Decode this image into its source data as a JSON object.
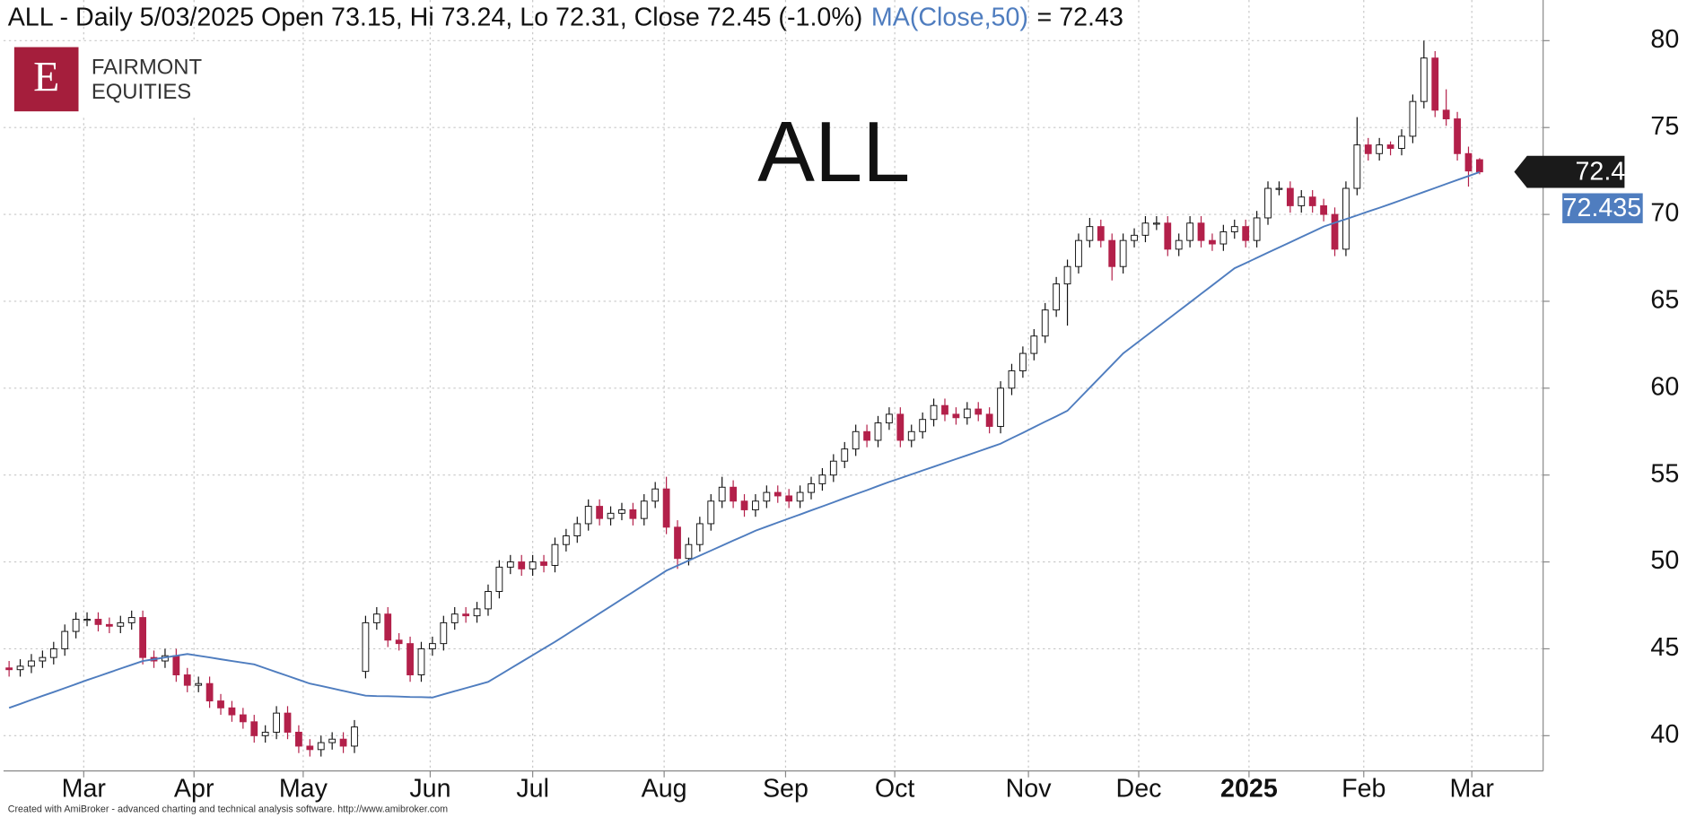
{
  "chart_data": {
    "type": "candlestick",
    "header": "ALL - Daily 5/03/2025 Open 73.15, Hi 73.24, Lo 72.31, Close 72.45 (-1.0%)",
    "header_suffix": "= 72.43",
    "watermark": "ALL",
    "logo": {
      "mark": "E",
      "line1": "FAIRMONT",
      "line2": "EQUITIES"
    },
    "footer": "Created with AmiBroker - advanced charting and technical analysis software. http://www.amibroker.com",
    "xlim": [
      -0.5,
      137.7
    ],
    "xticks": [
      {
        "value": 6.7,
        "label": "Mar"
      },
      {
        "value": 16.6,
        "label": "Apr"
      },
      {
        "value": 26.4,
        "label": "May"
      },
      {
        "value": 37.8,
        "label": "Jun"
      },
      {
        "value": 47,
        "label": "Jul"
      },
      {
        "value": 58.8,
        "label": "Aug"
      },
      {
        "value": 69.7,
        "label": "Sep"
      },
      {
        "value": 79.5,
        "label": "Oct"
      },
      {
        "value": 91.5,
        "label": "Nov"
      },
      {
        "value": 101.4,
        "label": "Dec"
      },
      {
        "value": 111.3,
        "label": "2025"
      },
      {
        "value": 121.6,
        "label": "Feb"
      },
      {
        "value": 131.3,
        "label": "Mar"
      }
    ],
    "ylim": [
      37.97,
      82.34
    ],
    "yticks": [
      40,
      45,
      50,
      55,
      60,
      65,
      70,
      75,
      80
    ],
    "grid": true,
    "series": [
      {
        "name": "ALL",
        "up_color": "#ffffff",
        "down_color": "#b3204a",
        "outline": "#111111",
        "open": [
          43.9,
          43.8,
          44,
          44.3,
          44.5,
          45,
          46,
          46.7,
          46.7,
          46.4,
          46.3,
          46.5,
          46.8,
          44.5,
          44.3,
          44.6,
          43.5,
          42.9,
          43,
          42,
          41.6,
          41.2,
          40.8,
          40,
          40.2,
          41.3,
          40.2,
          39.4,
          39.2,
          39.6,
          39.8,
          39.4,
          43.7,
          46.5,
          47,
          45.5,
          45.3,
          43.5,
          45,
          45.3,
          46.5,
          47,
          46.9,
          47.3,
          48.3,
          49.7,
          50,
          49.6,
          50,
          49.8,
          51,
          51.5,
          52.2,
          53.2,
          52.5,
          52.8,
          53,
          52.5,
          53.5,
          54.2,
          52,
          50.2,
          51,
          52.2,
          53.5,
          54.3,
          53.5,
          53,
          53.5,
          54,
          53.8,
          53.5,
          54,
          54.5,
          55,
          55.8,
          56.5,
          57.5,
          57,
          58,
          58.5,
          57,
          57.5,
          58.2,
          59,
          58.5,
          58.3,
          58.8,
          58.5,
          57.8,
          60,
          61,
          62,
          63,
          64.5,
          66,
          67,
          68.5,
          69.3,
          68.5,
          67,
          68.5,
          68.8,
          69.5,
          69.5,
          68,
          68.5,
          69.5,
          68.5,
          68.3,
          69,
          69.3,
          68.5,
          69.8,
          71.5,
          71.5,
          70.5,
          71,
          70.5,
          70,
          68,
          71.5,
          74,
          73.5,
          74,
          73.8,
          74.5,
          76.5,
          79,
          76,
          75.5,
          73.5,
          73.15
        ],
        "high": [
          44.3,
          44.4,
          44.7,
          44.9,
          45.4,
          46.4,
          47.1,
          47.1,
          47.1,
          46.8,
          46.9,
          47.2,
          47.2,
          44.9,
          45,
          45,
          43.9,
          43.4,
          43.4,
          42.4,
          42,
          41.6,
          41.2,
          40.6,
          41.7,
          41.7,
          40.6,
          39.8,
          40,
          40.2,
          40.2,
          40.9,
          46.9,
          47.4,
          47.4,
          45.9,
          45.7,
          45.4,
          45.7,
          46.9,
          47.4,
          47.4,
          47.7,
          48.7,
          50.1,
          50.4,
          50.4,
          50.4,
          50.4,
          51.4,
          51.9,
          52.6,
          53.6,
          53.6,
          53.2,
          53.4,
          53.4,
          53.9,
          54.6,
          54.9,
          52.4,
          51.4,
          52.6,
          53.9,
          54.9,
          54.7,
          53.9,
          53.9,
          54.4,
          54.4,
          54.2,
          54.4,
          54.9,
          55.4,
          56.2,
          56.9,
          57.9,
          57.9,
          58.4,
          58.9,
          58.9,
          57.9,
          58.6,
          59.4,
          59.4,
          58.9,
          59.2,
          59.2,
          58.9,
          60.4,
          61.4,
          62.4,
          63.4,
          64.9,
          66.4,
          67.4,
          68.9,
          69.8,
          69.7,
          68.9,
          68.9,
          69.2,
          69.9,
          69.9,
          69.9,
          68.9,
          69.9,
          69.9,
          68.9,
          69.4,
          69.7,
          69.7,
          70.2,
          71.9,
          71.9,
          71.9,
          71.4,
          71.4,
          70.9,
          70.4,
          71.9,
          75.6,
          74.4,
          74.4,
          74.2,
          74.9,
          76.9,
          80,
          79.4,
          77.2,
          75.9,
          73.9,
          73.24
        ],
        "low": [
          43.4,
          43.4,
          43.6,
          43.9,
          44.1,
          44.6,
          45.6,
          46.3,
          46,
          45.9,
          45.9,
          46.1,
          44.1,
          43.9,
          43.9,
          43.1,
          42.5,
          42.5,
          41.6,
          41.2,
          40.8,
          40.4,
          39.6,
          39.6,
          39.8,
          39.8,
          39,
          38.8,
          38.8,
          39.2,
          39,
          39,
          43.3,
          46.1,
          45.1,
          44.9,
          43.1,
          43.1,
          44.6,
          44.9,
          46.1,
          46.5,
          46.5,
          46.9,
          47.9,
          49.3,
          49.2,
          49.2,
          49.4,
          49.4,
          50.6,
          51.1,
          51.8,
          52.1,
          52.1,
          52.4,
          52.1,
          52.1,
          53.1,
          51.6,
          49.6,
          49.8,
          50.6,
          51.8,
          53.1,
          53.1,
          52.6,
          52.6,
          53.1,
          53.4,
          53.1,
          53.1,
          53.6,
          54.1,
          54.6,
          55.4,
          56.1,
          56.6,
          56.6,
          57.6,
          56.6,
          56.6,
          57.1,
          57.8,
          58.1,
          57.9,
          57.9,
          58.1,
          57.4,
          57.4,
          59.6,
          60.6,
          61.6,
          62.6,
          64.1,
          63.6,
          66.6,
          68.1,
          68.1,
          66.2,
          66.6,
          68.1,
          68.4,
          69.1,
          67.6,
          67.6,
          68.1,
          68.1,
          67.9,
          67.9,
          68.6,
          68.1,
          68.1,
          69.4,
          71.1,
          70.1,
          70.1,
          70.1,
          69.6,
          67.6,
          67.6,
          71.1,
          73.1,
          73.1,
          73.4,
          73.4,
          74.1,
          76.1,
          75.6,
          75.1,
          73.1,
          71.6,
          72.31
        ],
        "close": [
          43.8,
          44,
          44.3,
          44.5,
          45,
          46,
          46.7,
          46.7,
          46.4,
          46.3,
          46.5,
          46.8,
          44.5,
          44.3,
          44.6,
          43.5,
          42.9,
          43,
          42,
          41.6,
          41.2,
          40.8,
          40,
          40.2,
          41.3,
          40.2,
          39.4,
          39.2,
          39.6,
          39.8,
          39.4,
          40.5,
          46.5,
          47,
          45.5,
          45.3,
          43.5,
          45,
          45.3,
          46.5,
          47,
          46.9,
          47.3,
          48.3,
          49.7,
          50,
          49.6,
          50,
          49.8,
          51,
          51.5,
          52.2,
          53.2,
          52.5,
          52.8,
          53,
          52.5,
          53.5,
          54.2,
          52,
          50.2,
          51,
          52.2,
          53.5,
          54.3,
          53.5,
          53,
          53.5,
          54,
          53.8,
          53.5,
          54,
          54.5,
          55,
          55.8,
          56.5,
          57.5,
          57,
          58,
          58.5,
          57,
          57.5,
          58.2,
          59,
          58.5,
          58.3,
          58.8,
          58.5,
          57.8,
          60,
          61,
          62,
          63,
          64.5,
          66,
          67,
          68.5,
          69.3,
          68.5,
          67,
          68.5,
          68.8,
          69.5,
          69.5,
          68,
          68.5,
          69.5,
          68.5,
          68.3,
          69,
          69.3,
          68.5,
          69.8,
          71.5,
          71.5,
          70.5,
          71,
          70.5,
          70,
          68,
          71.5,
          74,
          73.5,
          74,
          73.8,
          74.5,
          76.5,
          79,
          76,
          75.5,
          73.5,
          72.5,
          72.45
        ]
      }
    ],
    "ma": {
      "name": "MA(Close,50)",
      "color": "#4f7dbf",
      "values": [
        41.6,
        41.83,
        42.06,
        42.29,
        42.51,
        42.74,
        42.97,
        43.2,
        43.42,
        43.64,
        43.86,
        44.08,
        44.3,
        44.4,
        44.5,
        44.6,
        44.7,
        44.6,
        44.5,
        44.4,
        44.3,
        44.2,
        44.1,
        43.88,
        43.66,
        43.44,
        43.22,
        43.0,
        42.86,
        42.72,
        42.58,
        42.44,
        42.3,
        42.28,
        42.27,
        42.25,
        42.23,
        42.22,
        42.2,
        42.38,
        42.56,
        42.74,
        42.92,
        43.1,
        43.48,
        43.87,
        44.25,
        44.63,
        45.02,
        45.4,
        45.81,
        46.22,
        46.63,
        47.04,
        47.45,
        47.86,
        48.27,
        48.68,
        49.09,
        49.5,
        49.79,
        50.08,
        50.36,
        50.65,
        50.94,
        51.23,
        51.51,
        51.8,
        52.03,
        52.27,
        52.5,
        52.73,
        52.97,
        53.2,
        53.43,
        53.67,
        53.9,
        54.13,
        54.37,
        54.6,
        54.82,
        55.04,
        55.26,
        55.48,
        55.7,
        55.92,
        56.14,
        56.36,
        56.58,
        56.8,
        57.12,
        57.43,
        57.75,
        58.07,
        58.38,
        58.7,
        59.36,
        60.02,
        60.68,
        61.34,
        62.0,
        62.49,
        62.98,
        63.47,
        63.96,
        64.45,
        64.94,
        65.43,
        65.92,
        66.41,
        66.9,
        67.2,
        67.5,
        67.8,
        68.1,
        68.4,
        68.7,
        69.0,
        69.3,
        69.52,
        69.73,
        69.95,
        70.17,
        70.38,
        70.6,
        70.83,
        71.06,
        71.29,
        71.52,
        71.75,
        71.98,
        72.21,
        72.435
      ]
    },
    "last_price": 72.45,
    "last_price_color": "#1a1a1a",
    "last_ma": 72.435
  }
}
